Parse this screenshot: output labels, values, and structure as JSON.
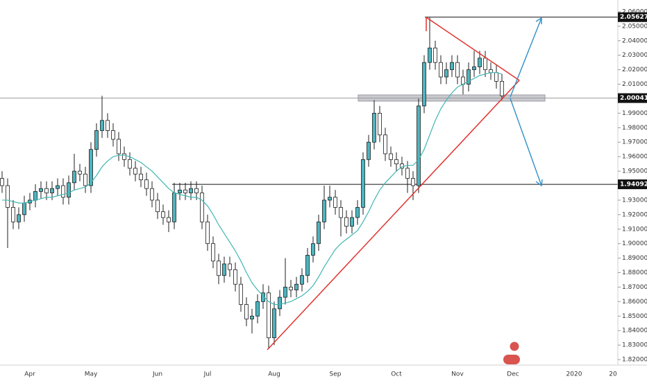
{
  "chart_data": {
    "type": "candlestick",
    "categories": [
      null,
      null,
      null,
      null,
      null,
      "Apr",
      null,
      null,
      null,
      null,
      null,
      null,
      null,
      null,
      null,
      null,
      "May",
      null,
      null,
      null,
      null,
      null,
      null,
      null,
      null,
      null,
      null,
      null,
      "Jun",
      null,
      null,
      null,
      null,
      null,
      null,
      null,
      null,
      "Jul",
      null,
      null,
      null,
      null,
      null,
      null,
      null,
      null,
      null,
      null,
      null,
      "Aug",
      null,
      null,
      null,
      null,
      null,
      null,
      null,
      null,
      null,
      null,
      "Sep",
      null,
      null,
      null,
      null,
      null,
      null,
      null,
      null,
      null,
      null,
      "Oct",
      null,
      null,
      null,
      null,
      null,
      null,
      null,
      null,
      null,
      null,
      "Nov",
      null,
      null,
      null,
      null,
      null,
      null,
      null,
      null,
      null,
      "Dec",
      null,
      null,
      null,
      null,
      null,
      null,
      null,
      null,
      null,
      null,
      "2020",
      null,
      null,
      null,
      null,
      null,
      null,
      "20"
    ],
    "open": [
      1.945,
      1.94,
      1.925,
      1.915,
      1.92,
      1.928,
      1.93,
      1.936,
      1.938,
      1.935,
      1.938,
      1.94,
      1.932,
      1.942,
      1.95,
      1.948,
      1.94,
      1.965,
      1.978,
      1.985,
      1.978,
      1.972,
      1.962,
      1.958,
      1.952,
      1.948,
      1.944,
      1.938,
      1.93,
      1.922,
      1.918,
      1.915,
      1.935,
      1.937,
      1.935,
      1.938,
      1.935,
      1.915,
      1.9,
      1.888,
      1.878,
      1.886,
      1.882,
      1.872,
      1.858,
      1.848,
      1.85,
      1.86,
      1.866,
      1.835,
      1.855,
      1.863,
      1.87,
      1.868,
      1.872,
      1.878,
      1.892,
      1.9,
      1.915,
      1.93,
      1.932,
      1.925,
      1.918,
      1.912,
      1.918,
      1.925,
      1.958,
      1.97,
      1.99,
      1.975,
      1.962,
      1.958,
      1.955,
      1.952,
      1.945,
      1.94,
      1.995,
      2.025,
      2.035,
      2.025,
      2.015,
      2.02,
      2.025,
      2.015,
      2.01,
      2.02,
      2.022,
      2.028,
      2.02,
      2.018,
      2.012,
      null,
      null,
      null,
      null,
      null,
      null,
      null,
      null,
      null,
      null,
      null,
      null,
      null,
      null,
      null,
      null,
      null,
      null,
      null,
      null
    ],
    "high": [
      1.95,
      1.945,
      1.93,
      1.925,
      1.933,
      1.935,
      1.941,
      1.943,
      1.943,
      1.943,
      1.945,
      1.945,
      1.947,
      1.962,
      1.955,
      1.953,
      1.97,
      1.983,
      2.002,
      1.99,
      1.983,
      1.977,
      1.967,
      1.963,
      1.957,
      1.953,
      1.949,
      1.943,
      1.935,
      1.927,
      1.923,
      1.942,
      1.942,
      1.942,
      1.943,
      1.943,
      1.94,
      1.92,
      1.905,
      1.893,
      1.891,
      1.891,
      1.887,
      1.877,
      1.863,
      1.855,
      1.865,
      1.872,
      1.871,
      1.86,
      1.868,
      1.89,
      1.875,
      1.877,
      1.883,
      1.897,
      1.905,
      1.92,
      1.94,
      1.94,
      1.937,
      1.93,
      1.923,
      1.923,
      1.93,
      1.963,
      1.975,
      1.999,
      1.995,
      1.98,
      1.967,
      1.963,
      1.96,
      1.957,
      1.95,
      2.0,
      2.03,
      2.056,
      2.04,
      2.03,
      2.025,
      2.03,
      2.03,
      2.02,
      2.025,
      2.033,
      2.033,
      2.033,
      2.025,
      2.023,
      2.017,
      null,
      null,
      null,
      null,
      null,
      null,
      null,
      null,
      null,
      null,
      null,
      null,
      null,
      null,
      null,
      null,
      null,
      null,
      null,
      null
    ],
    "low": [
      1.935,
      1.897,
      1.91,
      1.91,
      1.915,
      1.923,
      1.925,
      1.931,
      1.93,
      1.93,
      1.933,
      1.927,
      1.927,
      1.937,
      1.943,
      1.935,
      1.935,
      1.96,
      1.973,
      1.973,
      1.967,
      1.957,
      1.953,
      1.947,
      1.943,
      1.939,
      1.933,
      1.925,
      1.917,
      1.913,
      1.908,
      1.91,
      1.93,
      1.93,
      1.93,
      1.93,
      1.91,
      1.895,
      1.883,
      1.872,
      1.873,
      1.877,
      1.867,
      1.853,
      1.843,
      1.838,
      1.845,
      1.855,
      1.828,
      1.83,
      1.85,
      1.858,
      1.863,
      1.863,
      1.867,
      1.873,
      1.887,
      1.895,
      1.91,
      1.925,
      1.92,
      1.905,
      1.907,
      1.907,
      1.913,
      1.92,
      1.953,
      1.965,
      1.97,
      1.957,
      1.953,
      1.95,
      1.947,
      1.935,
      1.93,
      1.935,
      1.99,
      2.02,
      2.02,
      2.01,
      2.01,
      2.015,
      2.01,
      2.003,
      2.005,
      2.015,
      2.017,
      2.015,
      2.013,
      2.007,
      1.999,
      null,
      null,
      null,
      null,
      null,
      null,
      null,
      null,
      null,
      null,
      null,
      null,
      null,
      null,
      null,
      null,
      null,
      null,
      null,
      null
    ],
    "close": [
      1.94,
      1.925,
      1.915,
      1.92,
      1.928,
      1.93,
      1.936,
      1.938,
      1.935,
      1.938,
      1.94,
      1.932,
      1.942,
      1.95,
      1.948,
      1.94,
      1.965,
      1.978,
      1.985,
      1.978,
      1.972,
      1.962,
      1.958,
      1.952,
      1.948,
      1.944,
      1.938,
      1.93,
      1.922,
      1.918,
      1.915,
      1.935,
      1.937,
      1.935,
      1.938,
      1.935,
      1.915,
      1.9,
      1.888,
      1.878,
      1.886,
      1.882,
      1.872,
      1.858,
      1.848,
      1.85,
      1.86,
      1.866,
      1.835,
      1.855,
      1.863,
      1.87,
      1.868,
      1.872,
      1.878,
      1.892,
      1.9,
      1.915,
      1.93,
      1.932,
      1.925,
      1.918,
      1.912,
      1.918,
      1.925,
      1.958,
      1.97,
      1.99,
      1.975,
      1.962,
      1.958,
      1.955,
      1.952,
      1.945,
      1.94,
      1.995,
      2.025,
      2.035,
      2.025,
      2.015,
      2.02,
      2.025,
      2.015,
      2.01,
      2.02,
      2.022,
      2.028,
      2.02,
      2.018,
      2.012,
      2.002,
      null,
      null,
      null,
      null,
      null,
      null,
      null,
      null,
      null,
      null,
      null,
      null,
      null,
      null,
      null,
      null,
      null,
      null,
      null,
      null
    ],
    "ma": {
      "color": "#3fb6b2",
      "values": [
        1.93,
        1.93,
        1.929,
        1.928,
        1.928,
        1.929,
        1.93,
        1.931,
        1.932,
        1.932,
        1.933,
        1.934,
        1.935,
        1.937,
        1.938,
        1.939,
        1.942,
        1.947,
        1.953,
        1.957,
        1.96,
        1.961,
        1.961,
        1.96,
        1.958,
        1.956,
        1.953,
        1.95,
        1.946,
        1.942,
        1.938,
        1.935,
        1.934,
        1.933,
        1.932,
        1.932,
        1.93,
        1.926,
        1.92,
        1.913,
        1.907,
        1.901,
        1.895,
        1.888,
        1.88,
        1.873,
        1.868,
        1.864,
        1.86,
        1.858,
        1.858,
        1.859,
        1.86,
        1.862,
        1.864,
        1.867,
        1.871,
        1.877,
        1.884,
        1.89,
        1.896,
        1.9,
        1.903,
        1.906,
        1.909,
        1.915,
        1.922,
        1.93,
        1.937,
        1.942,
        1.946,
        1.95,
        1.953,
        1.954,
        1.954,
        1.958,
        1.965,
        1.975,
        1.985,
        1.993,
        1.999,
        2.004,
        2.008,
        2.01,
        2.012,
        2.014,
        2.016,
        2.017,
        2.018,
        2.018,
        2.017,
        null,
        null,
        null,
        null,
        null,
        null,
        null,
        null,
        null,
        null,
        null,
        null,
        null,
        null,
        null,
        null,
        null,
        null,
        null,
        null
      ]
    },
    "up_color": "#4db4bf",
    "down_color": "#ffffff",
    "outline_color": "#1c1c1c",
    "levels": [
      2.05627,
      2.00041,
      1.94092
    ],
    "ylim": [
      1.8162,
      2.0681
    ],
    "yticks": [
      {
        "value": 1.82,
        "label": "1.82000"
      },
      {
        "value": 1.83,
        "label": "1.83000"
      },
      {
        "value": 1.84,
        "label": "1.84000"
      },
      {
        "value": 1.85,
        "label": "1.85000"
      },
      {
        "value": 1.86,
        "label": "1.86000"
      },
      {
        "value": 1.87,
        "label": "1.87000"
      },
      {
        "value": 1.88,
        "label": "1.88000"
      },
      {
        "value": 1.89,
        "label": "1.89000"
      },
      {
        "value": 1.9,
        "label": "1.90000"
      },
      {
        "value": 1.91,
        "label": "1.91000"
      },
      {
        "value": 1.92,
        "label": "1.92000"
      },
      {
        "value": 1.93,
        "label": "1.93000"
      },
      {
        "value": 1.94,
        "label": "1.94000"
      },
      {
        "value": 1.95,
        "label": "1.95000"
      },
      {
        "value": 1.96,
        "label": "1.96000"
      },
      {
        "value": 1.97,
        "label": "1.97000"
      },
      {
        "value": 1.98,
        "label": "1.98000"
      },
      {
        "value": 1.99,
        "label": "1.99000"
      },
      {
        "value": 2.0,
        "label": "2.00000"
      },
      {
        "value": 2.01,
        "label": "2.01000"
      },
      {
        "value": 2.02,
        "label": "2.02000"
      },
      {
        "value": 2.03,
        "label": "2.03000"
      },
      {
        "value": 2.04,
        "label": "2.04000"
      },
      {
        "value": 2.05,
        "label": "2.05000"
      },
      {
        "value": 2.06,
        "label": "2.06000"
      }
    ],
    "grid": false
  }
}
